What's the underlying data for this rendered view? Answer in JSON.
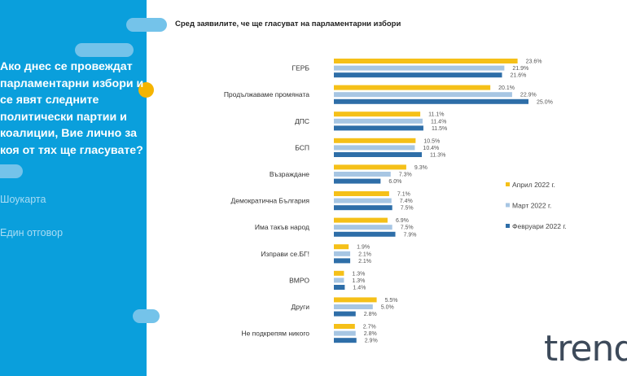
{
  "question": "Ако днес се провеждат парламентарни избори и се явят следните политически партии и коалиции, Вие лично за коя от тях ще гласувате?",
  "meta": [
    "Шоукарта",
    "Един отговор"
  ],
  "logo": "trend",
  "chart_data": {
    "type": "bar",
    "orientation": "horizontal",
    "title": "Сред заявилите, че ще гласуват на парламентарни избори",
    "categories": [
      "ГЕРБ",
      "Продължаваме промяната",
      "ДПС",
      "БСП",
      "Възраждане",
      "Демократична България",
      "Има такъв народ",
      "Изправи се.БГ!",
      "ВМРО",
      "Други",
      "Не подкрепям никого"
    ],
    "series": [
      {
        "name": "Април 2022 г.",
        "color": "#f5c018",
        "values": [
          23.6,
          20.1,
          11.1,
          10.5,
          9.3,
          7.1,
          6.9,
          1.9,
          1.3,
          5.5,
          2.7
        ]
      },
      {
        "name": "Март 2022 г.",
        "color": "#a7c6e3",
        "values": [
          21.9,
          22.9,
          11.4,
          10.4,
          7.3,
          7.4,
          7.5,
          2.1,
          1.3,
          5.0,
          2.8
        ]
      },
      {
        "name": "Февруари 2022 г.",
        "color": "#2e6ea8",
        "values": [
          21.6,
          25.0,
          11.5,
          11.3,
          6.0,
          7.5,
          7.9,
          2.1,
          1.4,
          2.8,
          2.9
        ]
      }
    ],
    "value_suffix": "%",
    "legend": "right",
    "grid": false
  }
}
